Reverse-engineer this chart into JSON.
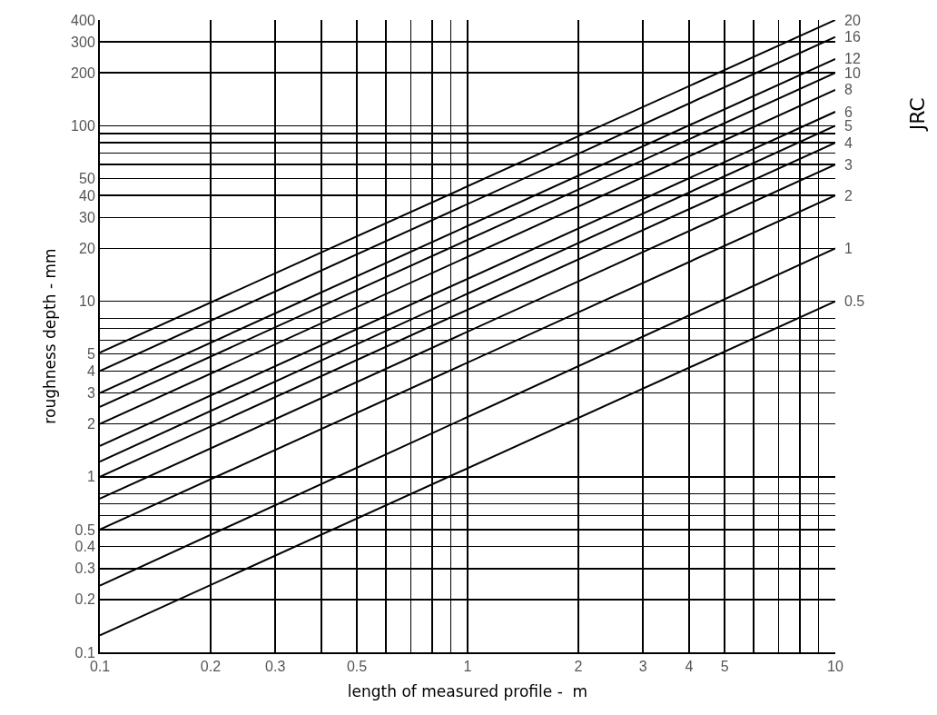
{
  "chart_data": {
    "type": "line",
    "xlabel": "length of measured profile -  m",
    "ylabel": "roughness depth - mm",
    "annotations": [
      "JRC"
    ],
    "x": [
      0.1,
      10
    ],
    "log": "xy",
    "grid": true,
    "legend": false,
    "marker": "none",
    "line_style": "solid",
    "xlim": [
      0.1,
      10
    ],
    "ylim": [
      0.1,
      400
    ],
    "xticks": [
      0.1,
      0.2,
      0.3,
      {
        "value": 0.4,
        "label": null
      },
      0.5,
      {
        "value": 0.6,
        "label": null
      },
      {
        "value": 0.7,
        "label": null
      },
      {
        "value": 0.8,
        "label": null
      },
      {
        "value": 0.9,
        "label": null
      },
      1,
      2,
      3,
      4,
      5,
      {
        "value": 6,
        "label": null
      },
      {
        "value": 7,
        "label": null
      },
      {
        "value": 8,
        "label": null
      },
      {
        "value": 9,
        "label": null
      },
      10
    ],
    "yticks": [
      0.1,
      0.2,
      0.3,
      0.4,
      0.5,
      {
        "value": 0.6,
        "label": null
      },
      {
        "value": 0.7,
        "label": null
      },
      {
        "value": 0.8,
        "label": null
      },
      1,
      2,
      3,
      4,
      5,
      {
        "value": 6,
        "label": null
      },
      {
        "value": 7,
        "label": null
      },
      {
        "value": 8,
        "label": null
      },
      10,
      20,
      30,
      40,
      50,
      {
        "value": 60,
        "label": null
      },
      {
        "value": 70,
        "label": null
      },
      {
        "value": 80,
        "label": null
      },
      {
        "value": 90,
        "label": null
      },
      100,
      200,
      300,
      400
    ],
    "series": [
      {
        "name": "20",
        "color": "#000000",
        "values": [
          5.1,
          400
        ]
      },
      {
        "name": "16",
        "color": "#000000",
        "values": [
          4.0,
          320
        ]
      },
      {
        "name": "12",
        "color": "#000000",
        "values": [
          3.0,
          240
        ]
      },
      {
        "name": "10",
        "color": "#000000",
        "values": [
          2.5,
          200
        ]
      },
      {
        "name": "8",
        "color": "#000000",
        "values": [
          2.0,
          160
        ]
      },
      {
        "name": "6",
        "color": "#000000",
        "values": [
          1.5,
          120
        ]
      },
      {
        "name": "5",
        "color": "#000000",
        "values": [
          1.22,
          100
        ]
      },
      {
        "name": "4",
        "color": "#000000",
        "values": [
          1.0,
          80
        ]
      },
      {
        "name": "3",
        "color": "#000000",
        "values": [
          0.75,
          60
        ]
      },
      {
        "name": "2",
        "color": "#000000",
        "values": [
          0.5,
          40
        ]
      },
      {
        "name": "1",
        "color": "#000000",
        "values": [
          0.24,
          20
        ]
      },
      {
        "name": "0.5",
        "color": "#000000",
        "values": [
          0.125,
          10
        ]
      }
    ]
  }
}
